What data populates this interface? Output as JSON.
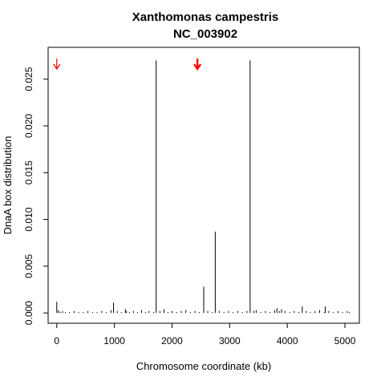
{
  "chart_data": {
    "type": "line",
    "title_lines": [
      "Xanthomonas campestris",
      "NC_003902"
    ],
    "xlabel": "Chromosome coordinate (kb)",
    "ylabel": "DnaA box distribution",
    "xlim": [
      -150,
      5250
    ],
    "ylim": [
      -0.0011,
      0.0284
    ],
    "x_ticks": [
      0,
      1000,
      2000,
      3000,
      4000,
      5000
    ],
    "x_tick_labels": [
      "0",
      "1000",
      "2000",
      "3000",
      "4000",
      "5000"
    ],
    "y_ticks": [
      0.0,
      0.005,
      0.01,
      0.015,
      0.02,
      0.025
    ],
    "y_tick_labels": [
      "0.000",
      "0.005",
      "0.010",
      "0.015",
      "0.020",
      "0.025"
    ],
    "grid": false,
    "legend": "none",
    "series": [
      {
        "style": "vertical-spikes",
        "color": "#000000",
        "x": [
          0,
          30,
          60,
          100,
          150,
          220,
          300,
          380,
          460,
          540,
          620,
          700,
          780,
          860,
          940,
          985,
          1050,
          1120,
          1190,
          1210,
          1260,
          1330,
          1400,
          1470,
          1540,
          1600,
          1680,
          1725,
          1790,
          1860,
          1930,
          2000,
          2080,
          2160,
          2240,
          2320,
          2400,
          2470,
          2550,
          2620,
          2700,
          2750,
          2820,
          2900,
          2980,
          3060,
          3140,
          3220,
          3300,
          3355,
          3420,
          3460,
          3540,
          3620,
          3700,
          3780,
          3820,
          3860,
          3900,
          3960,
          4040,
          4120,
          4200,
          4260,
          4330,
          4400,
          4480,
          4560,
          4640,
          4660,
          4720,
          4800,
          4880,
          4960,
          5040,
          5080
        ],
        "y": [
          0.0012,
          0.0003,
          0.0001,
          0.0002,
          0.0001,
          0.0001,
          0.0002,
          0.0001,
          0.0001,
          0.0002,
          0.0001,
          0.0001,
          0.0002,
          0.0001,
          0.0003,
          0.0011,
          0.0002,
          0.0001,
          0.0004,
          0.0002,
          0.0001,
          0.0002,
          0.0001,
          0.0003,
          0.0001,
          0.0002,
          0.0001,
          0.027,
          0.0002,
          0.0004,
          0.0001,
          0.0002,
          0.0001,
          0.0002,
          0.0003,
          0.0001,
          0.0002,
          0.0001,
          0.0028,
          0.0002,
          0.0001,
          0.0087,
          0.0002,
          0.0001,
          0.0002,
          0.0001,
          0.0002,
          0.0001,
          0.0002,
          0.027,
          0.0002,
          0.0003,
          0.0001,
          0.0002,
          0.0001,
          0.0003,
          0.0005,
          0.0002,
          0.0004,
          0.0002,
          0.0001,
          0.0002,
          0.0001,
          0.0007,
          0.0002,
          0.0001,
          0.0002,
          0.0003,
          0.0001,
          0.0007,
          0.0002,
          0.0001,
          0.0002,
          0.0001,
          0.0002,
          0.0001
        ]
      }
    ],
    "markers": [
      {
        "kind": "arrow-down",
        "x": 0,
        "color": "#ff0000",
        "weight": "thin"
      },
      {
        "kind": "arrow-down",
        "x": 2440,
        "color": "#ff0000",
        "weight": "bold"
      }
    ]
  }
}
